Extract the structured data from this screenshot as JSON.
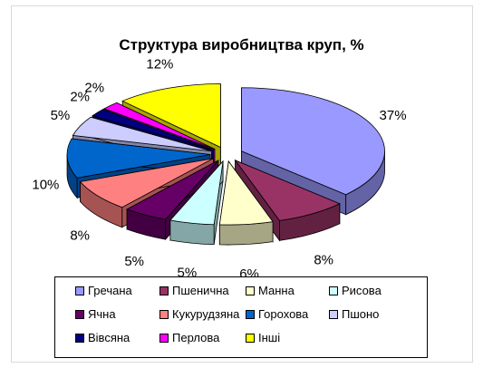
{
  "chart_data": {
    "type": "pie",
    "title": "Структура виробництва круп, %",
    "categories": [
      "Гречана",
      "Пшенична",
      "Манна",
      "Рисова",
      "Ячна",
      "Кукурудзяна",
      "Горохова",
      "Пшоно",
      "Вівсяна",
      "Перлова",
      "Інші"
    ],
    "values": [
      37,
      8,
      6,
      5,
      5,
      8,
      10,
      5,
      2,
      2,
      12
    ],
    "value_labels": [
      "37%",
      "8%",
      "6%",
      "5%",
      "5%",
      "8%",
      "10%",
      "5%",
      "2%",
      "2%",
      "12%"
    ],
    "legend_position": "bottom",
    "colors": [
      "#9999ff",
      "#993366",
      "#ffffcc",
      "#ccffff",
      "#660066",
      "#ff8080",
      "#0066cc",
      "#ccccff",
      "#000080",
      "#ff00ff",
      "#ffff00"
    ]
  }
}
